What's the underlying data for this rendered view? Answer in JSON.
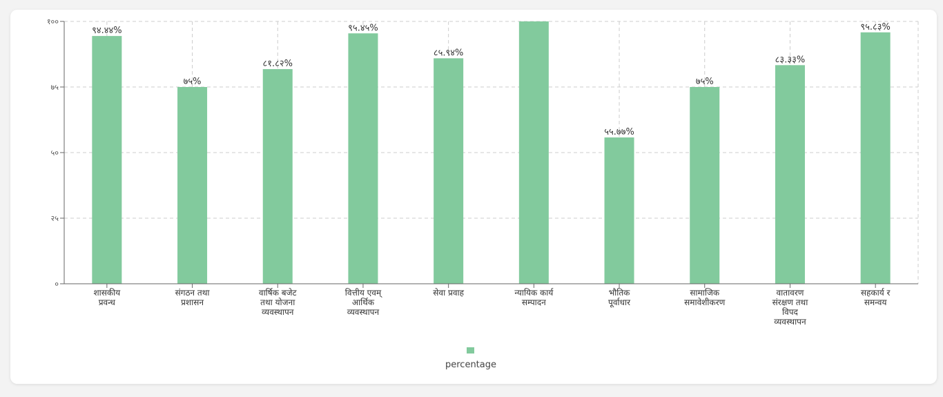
{
  "chart_data": {
    "type": "bar",
    "categories": [
      [
        "शासकीय",
        "प्रवन्ध"
      ],
      [
        "संगठन तथा",
        "प्रशासन"
      ],
      [
        "वार्षिक बजेट",
        "तथा योजना",
        "व्यवस्थापन"
      ],
      [
        "वित्तीय एवम्",
        "आर्थिक",
        "व्यवस्थापन"
      ],
      [
        "सेवा प्रवाह"
      ],
      [
        "न्यायिक कार्य",
        "सम्पादन"
      ],
      [
        "भौतिक",
        "पूर्वाधार"
      ],
      [
        "सामाजिक",
        "समावेशीकरण"
      ],
      [
        "वातावरण",
        "संरक्षण तथा",
        "विपद",
        "व्यवस्थापन"
      ],
      [
        "सहकार्य र",
        "समन्वय"
      ]
    ],
    "series": [
      {
        "name": "percentage",
        "values": [
          94.44,
          75,
          81.82,
          95.45,
          85.94,
          100,
          55.77,
          75,
          83.33,
          95.83
        ],
        "labels": [
          "९४.४४%",
          "७५%",
          "८१.८२%",
          "९५.४५%",
          "८५.९४%",
          "",
          "५५.७७%",
          "७५%",
          "८३.३३%",
          "९५.८३%"
        ],
        "color": "#82ca9d"
      }
    ],
    "ylim": [
      0,
      100
    ],
    "yticks": [
      0,
      25,
      50,
      75,
      100
    ],
    "ytick_labels": [
      "०",
      "२५",
      "५०",
      "७५",
      "१००"
    ],
    "grid": true,
    "legend": "bottom",
    "title": "",
    "xlabel": "",
    "ylabel": ""
  },
  "colors": {
    "grid": "#cccccc",
    "axis": "#666666"
  }
}
